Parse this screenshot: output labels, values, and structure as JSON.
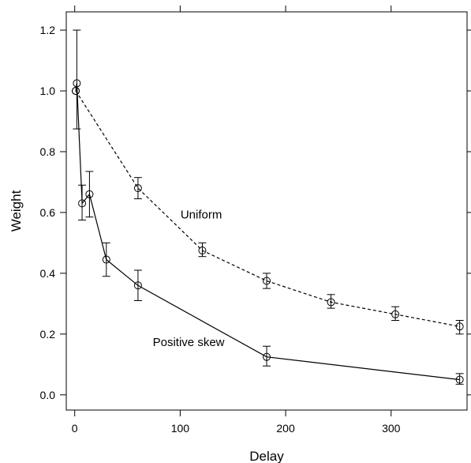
{
  "chart_data": {
    "type": "line",
    "xlabel": "Delay",
    "ylabel": "Weight",
    "xlim": [
      -8,
      372
    ],
    "ylim": [
      -0.05,
      1.26
    ],
    "xticks": [
      0,
      100,
      200,
      300
    ],
    "xtick_labels": [
      "0",
      "100",
      "200",
      "300"
    ],
    "yticks": [
      0.0,
      0.2,
      0.4,
      0.6,
      0.8,
      1.0,
      1.2
    ],
    "ytick_labels": [
      "0.0",
      "0.2",
      "0.4",
      "0.6",
      "0.8",
      "1.0",
      "1.2"
    ],
    "grid": false,
    "series": [
      {
        "line_style": "dashed",
        "marker": "open-circle",
        "color": "#000000",
        "points": [
          {
            "x": 1,
            "y": 1.0,
            "err_lo": null,
            "err_hi": null
          },
          {
            "x": 60,
            "y": 0.68,
            "err_lo": 0.645,
            "err_hi": 0.715
          },
          {
            "x": 121,
            "y": 0.475,
            "err_lo": 0.455,
            "err_hi": 0.5
          },
          {
            "x": 182,
            "y": 0.375,
            "err_lo": 0.35,
            "err_hi": 0.4
          },
          {
            "x": 243,
            "y": 0.305,
            "err_lo": 0.285,
            "err_hi": 0.33
          },
          {
            "x": 304,
            "y": 0.265,
            "err_lo": 0.245,
            "err_hi": 0.29
          },
          {
            "x": 365,
            "y": 0.225,
            "err_lo": 0.2,
            "err_hi": 0.245
          }
        ]
      },
      {
        "line_style": "solid",
        "marker": "open-circle",
        "color": "#000000",
        "points": [
          {
            "x": 1,
            "y": 1.0,
            "err_lo": null,
            "err_hi": null
          },
          {
            "x": 2,
            "y": 1.025,
            "err_lo": 0.875,
            "err_hi": 1.2
          },
          {
            "x": 7,
            "y": 0.63,
            "err_lo": 0.575,
            "err_hi": 0.69
          },
          {
            "x": 14,
            "y": 0.66,
            "err_lo": 0.585,
            "err_hi": 0.735
          },
          {
            "x": 30,
            "y": 0.445,
            "err_lo": 0.39,
            "err_hi": 0.5
          },
          {
            "x": 60,
            "y": 0.36,
            "err_lo": 0.31,
            "err_hi": 0.41
          },
          {
            "x": 182,
            "y": 0.125,
            "err_lo": 0.095,
            "err_hi": 0.16
          },
          {
            "x": 365,
            "y": 0.05,
            "err_lo": 0.035,
            "err_hi": 0.07
          }
        ]
      }
    ],
    "annotations": [
      {
        "text": "Uniform",
        "x": 120,
        "y": 0.58
      },
      {
        "text": "Positive skew",
        "x": 108,
        "y": 0.16
      }
    ]
  }
}
